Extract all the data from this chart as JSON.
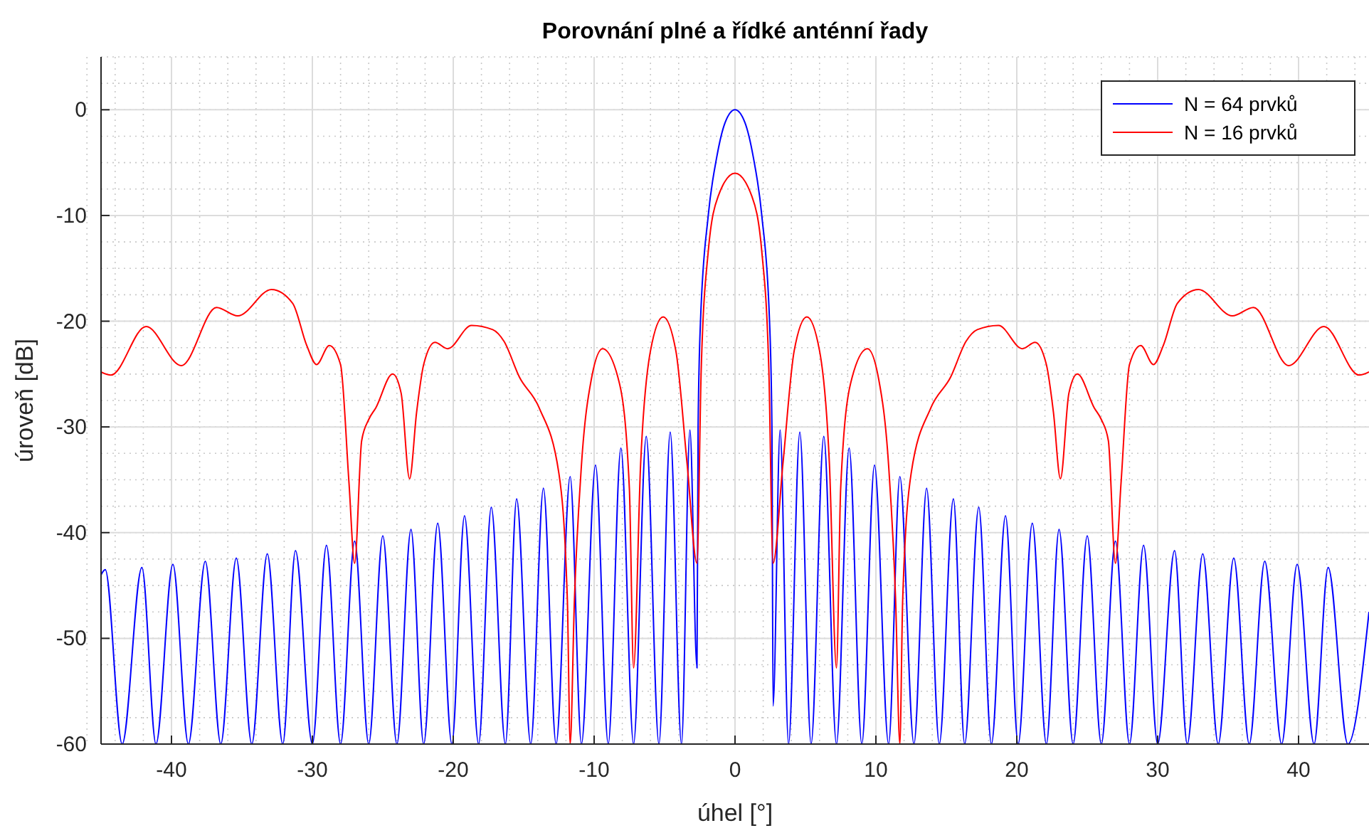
{
  "chart_data": {
    "type": "line",
    "title": "Porovnání plné a řídké anténní řady",
    "xlabel": "úhel [°]",
    "ylabel": "úroveň [dB]",
    "xlim": [
      -45,
      45
    ],
    "xticks": [
      -40,
      -30,
      -20,
      -10,
      0,
      10,
      20,
      30,
      40
    ],
    "ylim": [
      -60,
      5
    ],
    "yticks": [
      -60,
      -50,
      -40,
      -30,
      -20,
      -10,
      0
    ],
    "grid": true,
    "legend": "top right",
    "marker": "none",
    "line_style": "solid",
    "series": [
      {
        "name": "N = 64 prvků",
        "color": "#0000ff",
        "x": [
          -45,
          -44.7,
          -43.5,
          -42.1,
          -41.1,
          -39.9,
          -38.8,
          -37.6,
          -36.5,
          -35.4,
          -34.3,
          -33.2,
          -32.1,
          -31.2,
          -30.0,
          -29.0,
          -28.0,
          -27.0,
          -26.0,
          -25.0,
          -24.0,
          -23.0,
          -22.1,
          -21.1,
          -20.1,
          -19.2,
          -18.2,
          -17.3,
          -16.3,
          -15.5,
          -14.5,
          -13.6,
          -12.7,
          -11.7,
          -10.9,
          -9.9,
          -9.0,
          -8.1,
          -7.2,
          -6.3,
          -5.4,
          -4.6,
          -3.8,
          -3.2,
          -2.7,
          -2.62,
          -2.45,
          -1.9,
          -1.3,
          -0.7,
          0,
          0.7,
          1.3,
          1.9,
          2.45,
          2.62,
          2.7,
          3.2,
          3.8,
          4.6,
          5.4,
          6.3,
          7.2,
          8.1,
          9.0,
          9.9,
          10.9,
          11.7,
          12.7,
          13.6,
          14.5,
          15.5,
          16.3,
          17.3,
          18.2,
          19.2,
          20.1,
          21.1,
          22.1,
          23.0,
          24.0,
          25.0,
          26.0,
          27.0,
          28.0,
          29.0,
          30.0,
          31.2,
          32.1,
          33.2,
          34.3,
          35.4,
          36.5,
          37.6,
          38.8,
          39.9,
          41.1,
          42.1,
          43.5,
          45
        ],
        "values": [
          -44,
          -43.5,
          -60,
          -43.3,
          -60,
          -43.0,
          -60,
          -42.7,
          -60,
          -42.4,
          -60,
          -42.0,
          -60,
          -41.7,
          -60,
          -41.2,
          -60,
          -40.8,
          -60,
          -40.3,
          -60,
          -39.7,
          -60,
          -39.1,
          -60,
          -38.4,
          -60,
          -37.6,
          -60,
          -36.8,
          -60,
          -35.8,
          -60,
          -34.7,
          -60,
          -33.6,
          -60,
          -32.0,
          -60,
          -30.9,
          -60,
          -30.5,
          -60,
          -30.3,
          -52.8,
          -30,
          -20,
          -10,
          -4.5,
          -1.2,
          0,
          -1.2,
          -4.5,
          -10,
          -20,
          -30,
          -56.4,
          -30.3,
          -60,
          -30.5,
          -60,
          -30.9,
          -60,
          -32.0,
          -60,
          -33.6,
          -60,
          -34.7,
          -60,
          -35.8,
          -60,
          -36.8,
          -60,
          -37.6,
          -60,
          -38.4,
          -60,
          -39.1,
          -60,
          -39.7,
          -60,
          -40.3,
          -60,
          -40.8,
          -60,
          -41.2,
          -60,
          -41.7,
          -60,
          -42.0,
          -60,
          -42.4,
          -60,
          -42.7,
          -60,
          -43.0,
          -60,
          -43.3,
          -60,
          -47.5
        ]
      },
      {
        "name": "N = 16 prvků",
        "color": "#ff0000",
        "x": [
          -45,
          -44.3,
          -41.8,
          -39.3,
          -36.8,
          -35.3,
          -32.9,
          -31.4,
          -30.4,
          -29.7,
          -28.8,
          -28.0,
          -27.4,
          -27.0,
          -26.5,
          -26.0,
          -25.5,
          -24.3,
          -23.7,
          -23.1,
          -22.6,
          -22.1,
          -21.3,
          -20.4,
          -18.7,
          -17.2,
          -16.4,
          -15.3,
          -13.9,
          -12.5,
          -11.9,
          -11.7,
          -11.4,
          -10.9,
          -10.2,
          -9.4,
          -8.2,
          -7.5,
          -7.2,
          -6.7,
          -6.0,
          -5.1,
          -4.2,
          -3.4,
          -2.7,
          -2.4,
          -1.9,
          -1.2,
          0,
          1.2,
          1.9,
          2.4,
          2.7,
          3.4,
          4.2,
          5.1,
          6.0,
          6.7,
          7.2,
          7.5,
          8.2,
          9.4,
          10.2,
          10.9,
          11.4,
          11.7,
          11.9,
          12.5,
          13.9,
          15.3,
          16.4,
          17.2,
          18.7,
          20.4,
          21.3,
          22.1,
          22.6,
          23.1,
          23.7,
          24.3,
          25.5,
          26.0,
          26.5,
          27.0,
          27.4,
          28.0,
          28.8,
          29.7,
          30.4,
          31.4,
          32.9,
          35.3,
          36.8,
          39.3,
          41.8,
          44.3,
          45
        ],
        "values": [
          -24.8,
          -25.1,
          -20.5,
          -24.2,
          -18.7,
          -19.5,
          -17.0,
          -18.3,
          -22.3,
          -24.1,
          -22.3,
          -24.1,
          -35.3,
          -42.9,
          -31.3,
          -29.3,
          -28.2,
          -25.0,
          -26.8,
          -34.9,
          -28.6,
          -24.1,
          -22.0,
          -22.6,
          -20.4,
          -20.8,
          -21.9,
          -25.3,
          -28.2,
          -34.4,
          -46.4,
          -60,
          -46.4,
          -33.6,
          -25.5,
          -22.6,
          -25.9,
          -35.8,
          -52.8,
          -33.5,
          -22.8,
          -19.6,
          -22.8,
          -33.5,
          -42.9,
          -24.6,
          -13.4,
          -8.2,
          -6.0,
          -8.2,
          -13.4,
          -24.6,
          -42.9,
          -33.5,
          -22.8,
          -19.6,
          -22.8,
          -33.5,
          -52.8,
          -35.8,
          -25.9,
          -22.6,
          -25.5,
          -33.6,
          -46.4,
          -60,
          -46.4,
          -34.4,
          -28.2,
          -25.3,
          -21.9,
          -20.8,
          -20.4,
          -22.6,
          -22.0,
          -24.1,
          -28.6,
          -34.9,
          -26.8,
          -25.0,
          -28.2,
          -29.3,
          -31.3,
          -42.9,
          -35.3,
          -24.1,
          -22.3,
          -24.1,
          -22.3,
          -18.3,
          -17.0,
          -19.5,
          -18.7,
          -24.2,
          -20.5,
          -25.1,
          -24.8
        ]
      }
    ]
  }
}
